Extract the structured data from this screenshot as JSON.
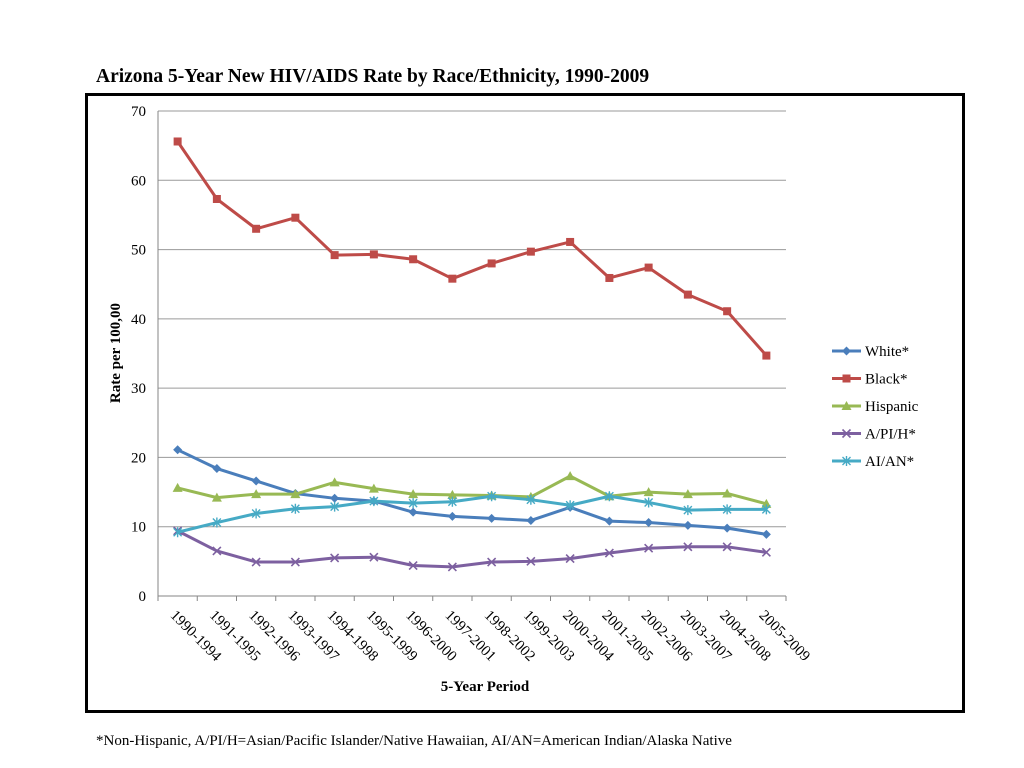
{
  "chart_data": {
    "type": "line",
    "title": "Arizona 5-Year New HIV/AIDS Rate by Race/Ethnicity, 1990-2009",
    "xlabel": "5-Year Period",
    "ylabel": "Rate per 100,00",
    "ylim": [
      0,
      70
    ],
    "yticks": [
      0,
      10,
      20,
      30,
      40,
      50,
      60,
      70
    ],
    "grid": true,
    "legend_position": "right",
    "categories": [
      "1990-1994",
      "1991-1995",
      "1992-1996",
      "1993-1997",
      "1994-1998",
      "1995-1999",
      "1996-2000",
      "1997-2001",
      "1998-2002",
      "1999-2003",
      "2000-2004",
      "2001-2005",
      "2002-2006",
      "2003-2007",
      "2004-2008",
      "2005-2009"
    ],
    "series": [
      {
        "name": "White*",
        "color": "#4a7ebb",
        "marker": "diamond",
        "values": [
          21.1,
          18.4,
          16.6,
          14.8,
          14.1,
          13.7,
          12.1,
          11.5,
          11.2,
          10.9,
          12.8,
          10.8,
          10.6,
          10.2,
          9.8,
          8.9
        ]
      },
      {
        "name": "Black*",
        "color": "#be4b48",
        "marker": "square",
        "values": [
          65.6,
          57.3,
          53.0,
          54.6,
          49.2,
          49.3,
          48.6,
          45.8,
          48.0,
          49.7,
          51.1,
          45.9,
          47.4,
          43.5,
          41.1,
          34.7
        ]
      },
      {
        "name": "Hispanic",
        "color": "#98b954",
        "marker": "triangle",
        "values": [
          15.6,
          14.2,
          14.7,
          14.7,
          16.4,
          15.5,
          14.7,
          14.6,
          14.5,
          14.3,
          17.3,
          14.4,
          15.0,
          14.7,
          14.8,
          13.3
        ]
      },
      {
        "name": "A/PI/H*",
        "color": "#7d60a0",
        "marker": "x",
        "values": [
          9.4,
          6.5,
          4.9,
          4.9,
          5.5,
          5.6,
          4.4,
          4.2,
          4.9,
          5.0,
          5.4,
          6.2,
          6.9,
          7.1,
          7.1,
          6.3
        ]
      },
      {
        "name": "AI/AN*",
        "color": "#46aac5",
        "marker": "star",
        "values": [
          9.2,
          10.6,
          11.9,
          12.6,
          12.9,
          13.7,
          13.4,
          13.6,
          14.4,
          13.9,
          13.1,
          14.4,
          13.5,
          12.4,
          12.5,
          12.5
        ]
      }
    ]
  },
  "footnote": "*Non-Hispanic, A/PI/H=Asian/Pacific Islander/Native Hawaiian, AI/AN=American Indian/Alaska Native"
}
